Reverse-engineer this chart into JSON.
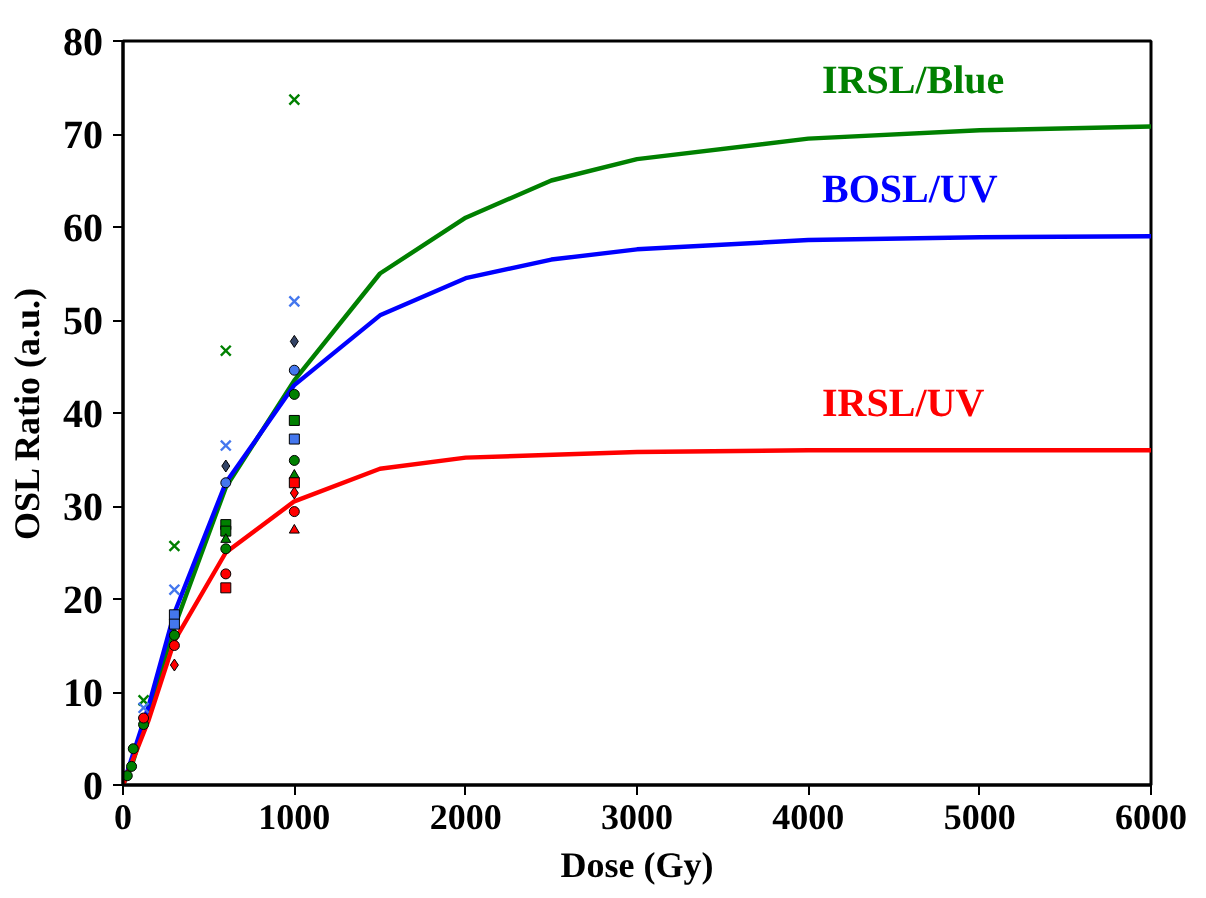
{
  "chart_data": {
    "type": "line",
    "xlabel": "Dose (Gy)",
    "ylabel": "OSL Ratio (a.u.)",
    "xlim": [
      0,
      6000
    ],
    "ylim": [
      0,
      80
    ],
    "xticks": [
      0,
      1000,
      2000,
      3000,
      4000,
      5000,
      6000
    ],
    "yticks": [
      0,
      10,
      20,
      30,
      40,
      50,
      60,
      70,
      80
    ],
    "grid": false,
    "marker": "none",
    "series": [
      {
        "name": "IRSL/Blue",
        "color": "#008000",
        "x": [
          0,
          50,
          100,
          150,
          300,
          600,
          1000,
          1500,
          2000,
          2500,
          3000,
          4000,
          5000,
          6000
        ],
        "values": [
          0,
          2,
          5,
          8,
          17,
          32,
          43.5,
          55,
          61,
          65,
          67.3,
          69.5,
          70.4,
          70.8
        ]
      },
      {
        "name": "BOSL/UV",
        "color": "#0000ff",
        "x": [
          0,
          150,
          300,
          600,
          1000,
          1500,
          2000,
          2500,
          3000,
          4000,
          5000,
          6000
        ],
        "values": [
          0,
          8.5,
          18.5,
          32.5,
          43,
          50.5,
          54.5,
          56.5,
          57.6,
          58.6,
          58.9,
          59
        ]
      },
      {
        "name": "IRSL/UV",
        "color": "#ff0000",
        "x": [
          0,
          150,
          300,
          600,
          1000,
          1500,
          2000,
          3000,
          4000,
          6000
        ],
        "values": [
          0,
          7,
          15.5,
          25,
          30.5,
          34,
          35.2,
          35.8,
          36,
          36
        ]
      },
      {
        "type": "scatter",
        "marker": "cross",
        "color": "#008000",
        "x": [
          120,
          300,
          600,
          1000
        ],
        "values": [
          9.1,
          25.7,
          46.7,
          73.7
        ]
      },
      {
        "type": "scatter",
        "marker": "cross",
        "color": "#4477ee",
        "x": [
          120,
          300,
          600,
          1000
        ],
        "values": [
          8.3,
          21,
          36.5,
          52
        ]
      },
      {
        "type": "scatter",
        "marker": "diamond",
        "color": "#334466",
        "x": [
          600,
          1000
        ],
        "values": [
          34.3,
          47.7
        ]
      },
      {
        "type": "scatter",
        "marker": "circle",
        "color": "#4477ee",
        "x": [
          600,
          1000
        ],
        "values": [
          32.5,
          44.6
        ]
      },
      {
        "type": "scatter",
        "marker": "square",
        "color": "#4477ee",
        "x": [
          300,
          300,
          1000
        ],
        "values": [
          18.3,
          17.3,
          37.2
        ]
      },
      {
        "type": "scatter",
        "marker": "square",
        "color": "#008000",
        "x": [
          600,
          600,
          1000
        ],
        "values": [
          28,
          27.3,
          39.2
        ]
      },
      {
        "type": "scatter",
        "marker": "circle",
        "color": "#008000",
        "x": [
          25,
          50,
          60,
          120,
          300,
          600,
          1000,
          1000
        ],
        "values": [
          1,
          2,
          3.9,
          6.5,
          16.1,
          25.4,
          42,
          34.9
        ]
      },
      {
        "type": "scatter",
        "marker": "triangle",
        "color": "#008000",
        "x": [
          600,
          1000
        ],
        "values": [
          26.4,
          33.3
        ]
      },
      {
        "type": "scatter",
        "marker": "square",
        "color": "#ff0000",
        "x": [
          600,
          1000
        ],
        "values": [
          21.2,
          32.5
        ]
      },
      {
        "type": "scatter",
        "marker": "circle",
        "color": "#ff0000",
        "x": [
          120,
          300,
          600,
          1000
        ],
        "values": [
          7.2,
          15,
          22.7,
          29.4
        ]
      },
      {
        "type": "scatter",
        "marker": "diamond",
        "color": "#ff0000",
        "x": [
          300,
          1000
        ],
        "values": [
          12.9,
          31.4
        ]
      },
      {
        "type": "scatter",
        "marker": "triangle",
        "color": "#ff0000",
        "x": [
          1000
        ],
        "values": [
          27.4
        ]
      }
    ]
  }
}
